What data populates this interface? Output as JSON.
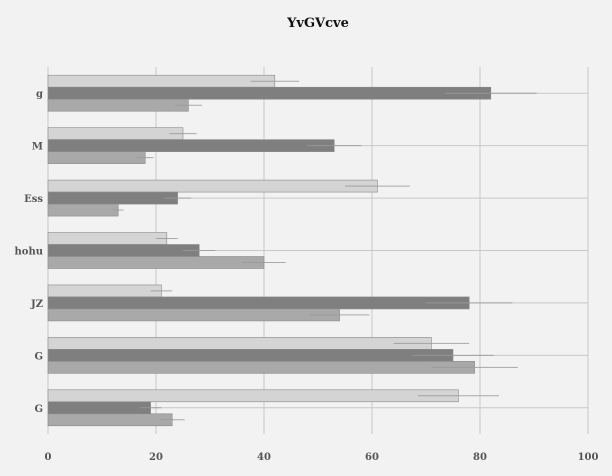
{
  "chart_data": {
    "type": "bar",
    "orientation": "horizontal",
    "title": "YvGVcve",
    "xlabel": "",
    "ylabel": "",
    "categories": [
      "g",
      "M",
      "Ess",
      "hohu",
      "JZ",
      "G",
      "G"
    ],
    "xlim": [
      0,
      100
    ],
    "xticks": [
      0,
      20,
      40,
      60,
      80,
      100
    ],
    "grid": true,
    "legend": "none",
    "series": [
      {
        "color": "#d4d4d4",
        "values": [
          42,
          25,
          61,
          22,
          21,
          71,
          76
        ],
        "errors": [
          4.5,
          2.5,
          6,
          2,
          2,
          7,
          7.5
        ]
      },
      {
        "color": "#7f7f7f",
        "values": [
          82,
          53,
          24,
          28,
          78,
          75,
          19
        ],
        "errors": [
          8.5,
          5,
          2.5,
          3,
          8,
          7.5,
          2
        ]
      },
      {
        "color": "#a9a9a9",
        "values": [
          26,
          18,
          13,
          40,
          54,
          79,
          23
        ],
        "errors": [
          2.5,
          1.5,
          1,
          4,
          5.5,
          8,
          2.3
        ]
      }
    ]
  }
}
